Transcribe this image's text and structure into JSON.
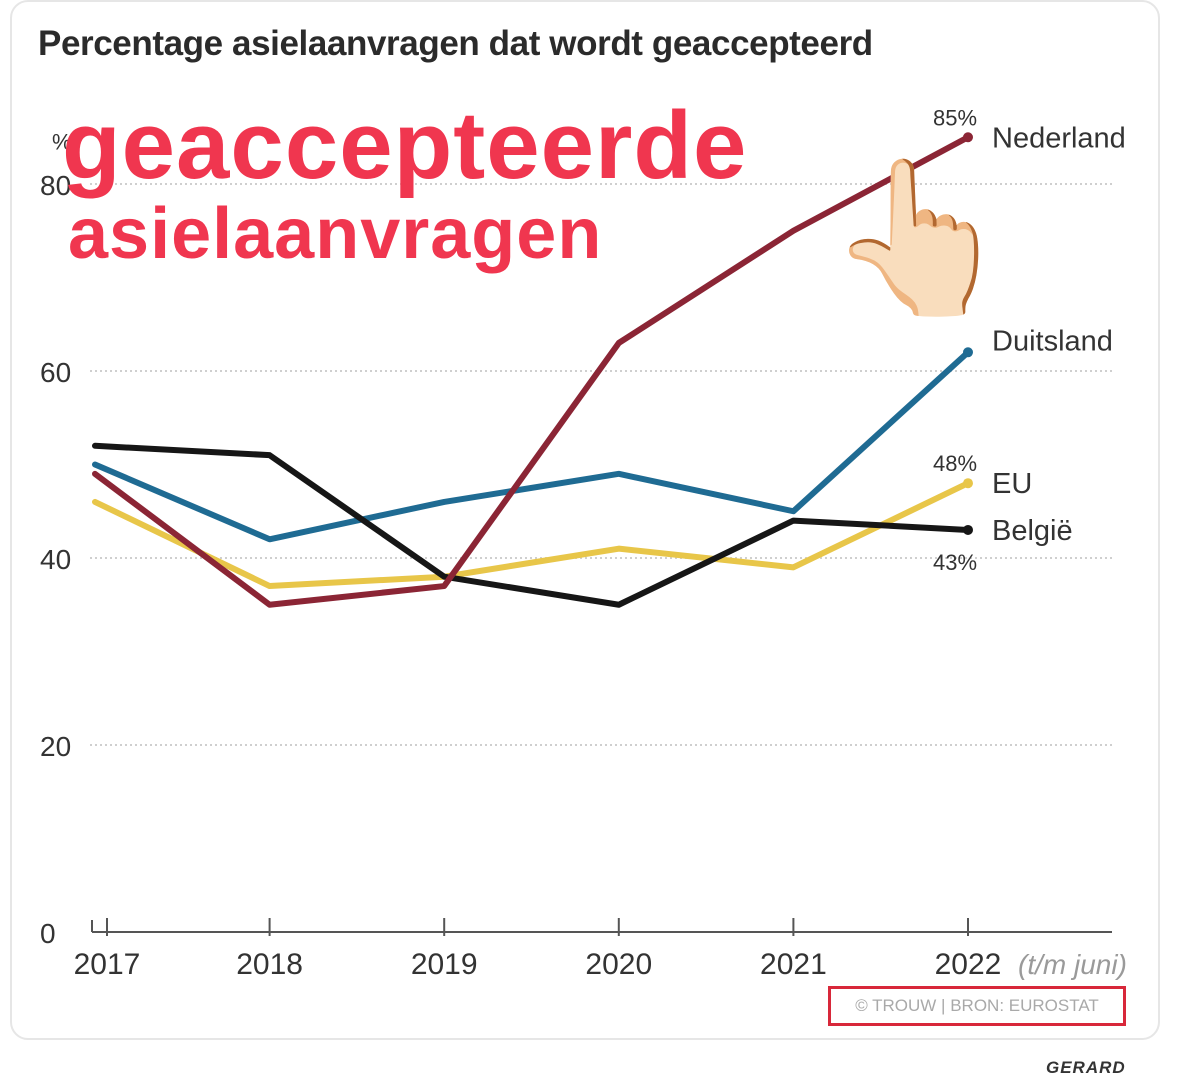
{
  "title": "Percentage asielaanvragen dat wordt geaccepteerd",
  "overlay": {
    "line1": "geaccepteerde",
    "line2": "asielaanvragen",
    "pointer": "👆🏻"
  },
  "source": "© TROUW | BRON: EUROSTAT",
  "credit": "GERARD",
  "colors": {
    "Nederland": "#8b2535",
    "Duitsland": "#1f6b93",
    "EU": "#e8c649",
    "België": "#161616"
  },
  "chart_data": {
    "type": "line",
    "title": "Percentage asielaanvragen dat wordt geaccepteerd",
    "y_unit": "%",
    "x": [
      "2017",
      "2018",
      "2019",
      "2020",
      "2021",
      "2022"
    ],
    "x_suffix": "(t/m juni)",
    "ylim": [
      0,
      85
    ],
    "yticks": [
      "0",
      "20",
      "40",
      "60",
      "80"
    ],
    "grid": true,
    "series": [
      {
        "name": "Nederland",
        "values": [
          49,
          35,
          37,
          63,
          75,
          85
        ],
        "end_label": "85%"
      },
      {
        "name": "Duitsland",
        "values": [
          50,
          42,
          46,
          49,
          45,
          62
        ]
      },
      {
        "name": "EU",
        "values": [
          46,
          37,
          38,
          41,
          39,
          48
        ],
        "end_label": "48%"
      },
      {
        "name": "België",
        "values": [
          52,
          51,
          38,
          35,
          44,
          43
        ],
        "end_label": "43%"
      }
    ]
  }
}
